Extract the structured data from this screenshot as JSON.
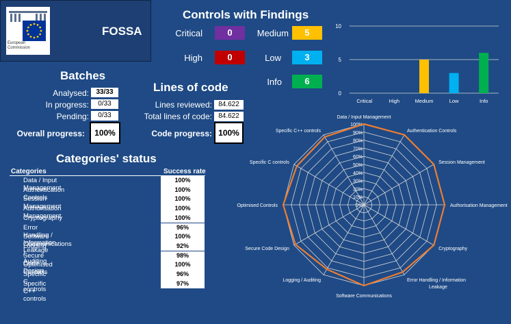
{
  "logo": {
    "line1": "European",
    "line2": "Commission",
    "app_name": "FOSSA"
  },
  "findings": {
    "title": "Controls with Findings",
    "items": [
      {
        "label": "Critical",
        "value": "0",
        "color": "#7030a0"
      },
      {
        "label": "High",
        "value": "0",
        "color": "#c00000"
      },
      {
        "label": "Medium",
        "value": "5",
        "color": "#ffc000"
      },
      {
        "label": "Low",
        "value": "3",
        "color": "#00b0f0"
      },
      {
        "label": "Info",
        "value": "6",
        "color": "#00b050"
      }
    ]
  },
  "batches": {
    "title": "Batches",
    "analysed_label": "Analysed:",
    "analysed_value": "33/33",
    "in_progress_label": "In progress:",
    "in_progress_value": "0/33",
    "pending_label": "Pending:",
    "pending_value": "0/33",
    "overall_label": "Overall progress:",
    "overall_value": "100%"
  },
  "loc": {
    "title": "Lines of code",
    "reviewed_label": "Lines reviewed:",
    "reviewed_value": "84.622",
    "total_label": "Total lines of code:",
    "total_value": "84.622",
    "progress_label": "Code progress:",
    "progress_value": "100%"
  },
  "categories": {
    "title": "Categories' status",
    "col_category": "Categories",
    "col_rate": "Success rate",
    "rows": [
      {
        "name": "Data / Input Management",
        "rate": "100%"
      },
      {
        "name": "Authentication Controls",
        "rate": "100%"
      },
      {
        "name": "Session Management",
        "rate": "100%"
      },
      {
        "name": "Authorisation Management",
        "rate": "100%"
      },
      {
        "name": "Cryptography",
        "rate": "100%"
      },
      {
        "name": "Error Handling / Information Leakage",
        "rate": "96%"
      },
      {
        "name": "Software Communications",
        "rate": "100%"
      },
      {
        "name": "Logging / Auditing",
        "rate": "92%"
      },
      {
        "name": "Secure Code Design",
        "rate": "98%"
      },
      {
        "name": "Optimised Controls",
        "rate": "100%"
      },
      {
        "name": "Specific C controls",
        "rate": "96%"
      },
      {
        "name": "Specific C++ controls",
        "rate": "97%"
      }
    ]
  },
  "chart_data": [
    {
      "type": "bar",
      "categories": [
        "Critical",
        "High",
        "Medium",
        "Low",
        "Info"
      ],
      "values": [
        0,
        0,
        5,
        3,
        6
      ],
      "colors": [
        "#7030a0",
        "#c00000",
        "#ffc000",
        "#00b0f0",
        "#00b050"
      ],
      "ylim": [
        0,
        10
      ],
      "yticks": [
        "0",
        "5",
        "10"
      ],
      "grid": true
    },
    {
      "type": "radar",
      "categories": [
        "Data / Input Management",
        "Authentication Controls",
        "Session Management",
        "Authorisation Management",
        "Cryptography",
        "Error Handling / Information Leakage",
        "Software Communications",
        "Logging / Auditing",
        "Secure Code Design",
        "Optimised Controls",
        "Specific C controls",
        "Specific C++ controls"
      ],
      "values": [
        100,
        100,
        100,
        100,
        100,
        96,
        100,
        92,
        98,
        100,
        96,
        97
      ],
      "rlim": [
        0,
        100
      ],
      "rticks": [
        "0%",
        "10%",
        "20%",
        "30%",
        "40%",
        "50%",
        "60%",
        "70%",
        "80%",
        "90%",
        "100%"
      ],
      "line_color": "#ed7d31"
    }
  ]
}
